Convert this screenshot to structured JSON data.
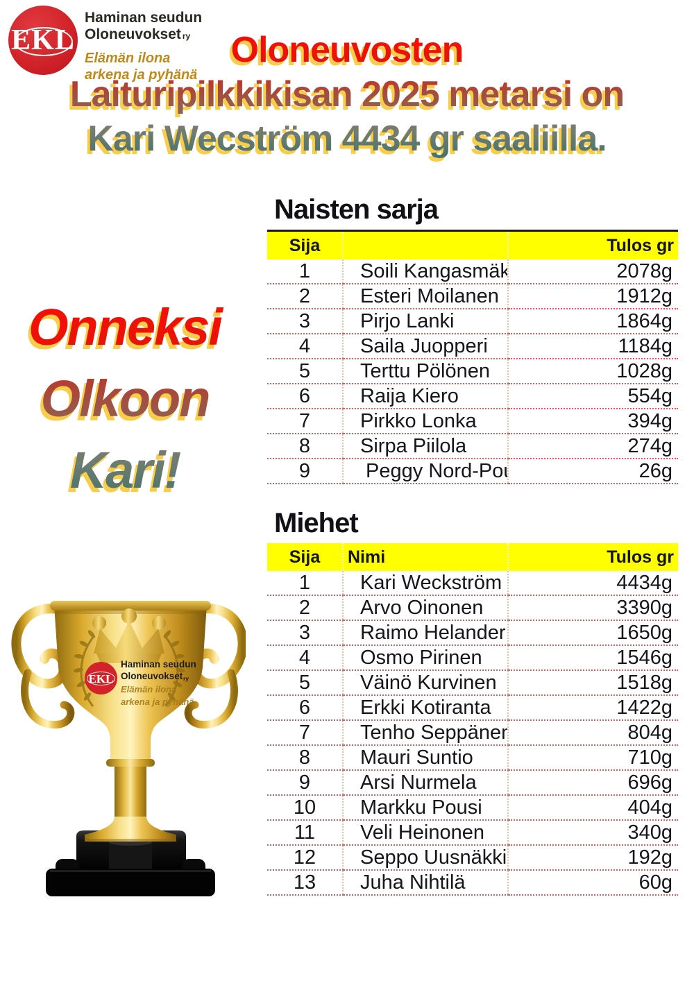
{
  "page": {
    "background": "#ffffff"
  },
  "header_logo": {
    "abbr": "EKL",
    "org_line1": "Haminan seudun",
    "org_line2": "Oloneuvokset",
    "org_suffix": "ry",
    "tagline_line1": "Elämän ilona",
    "tagline_line2": "arkena ja pyhänä"
  },
  "title": {
    "line1": "Oloneuvosten",
    "line2": "Laituripilkkikisan 2025 metarsi on",
    "line3": "Kari Wecström 4434 gr saaliilla."
  },
  "congrats": {
    "line1": "Onneksi",
    "line2": "Olkoon",
    "line3": "Kari!"
  },
  "tables": [
    {
      "title": "Naisten sarja",
      "headers": {
        "sija": "Sija",
        "nimi": "",
        "tulos": "Tulos gr"
      },
      "rows": [
        [
          "1",
          "Soili Kangasmäki-W",
          "2078g"
        ],
        [
          "2",
          "Esteri Moilanen",
          "1912g"
        ],
        [
          "3",
          "Pirjo Lanki",
          "1864g"
        ],
        [
          "4",
          "Saila Juopperi",
          "1184g"
        ],
        [
          "5",
          "Terttu Pölönen",
          "1028g"
        ],
        [
          "6",
          "Raija Kiero",
          "554g"
        ],
        [
          "7",
          "Pirkko Lonka",
          "394g"
        ],
        [
          "8",
          "Sirpa Piilola",
          "274g"
        ],
        [
          "9",
          " Peggy Nord-Pousi",
          "26g"
        ]
      ]
    },
    {
      "title": "Miehet",
      "headers": {
        "sija": "Sija",
        "nimi": "Nimi",
        "tulos": "Tulos gr"
      },
      "rows": [
        [
          "1",
          "Kari Weckström",
          "4434g"
        ],
        [
          "2",
          "Arvo Oinonen",
          "3390g"
        ],
        [
          "3",
          "Raimo Helander",
          "1650g"
        ],
        [
          "4",
          "Osmo Pirinen",
          "1546g"
        ],
        [
          "5",
          "Väinö Kurvinen",
          "1518g"
        ],
        [
          "6",
          "Erkki Kotiranta",
          "1422g"
        ],
        [
          "7",
          "Tenho Seppänen",
          "804g"
        ],
        [
          "8",
          "Mauri Suntio",
          "710g"
        ],
        [
          "9",
          "Arsi Nurmela",
          "696g"
        ],
        [
          "10",
          "Markku Pousi",
          "404g"
        ],
        [
          "11",
          "Veli Heinonen",
          "340g"
        ],
        [
          "12",
          "Seppo Uusnäkki",
          "192g"
        ],
        [
          "13",
          "Juha Nihtilä",
          "60g"
        ]
      ]
    }
  ],
  "trophy": {
    "abbr": "EKL",
    "org_line1": "Haminan seudun",
    "org_line2": "Oloneuvokset",
    "org_suffix": "ry",
    "tagline_line1": "Elämän ilona",
    "tagline_line2": "arkena ja pyhänä"
  },
  "colors": {
    "logo_red": "#d2232a",
    "table_header_bg": "#ffff00",
    "row_divider_red": "#e05a5a",
    "column_divider_peach": "#f3bd96",
    "title_shadow_yellow": "#f8cd49",
    "gradient_top_red": "#fb0d06",
    "gradient_mid_maroon": "#9a5a4c",
    "gradient_bottom_teal": "#41706a",
    "trophy_gold": "#d9a92c",
    "tagline_gold": "#bf8a1d"
  }
}
